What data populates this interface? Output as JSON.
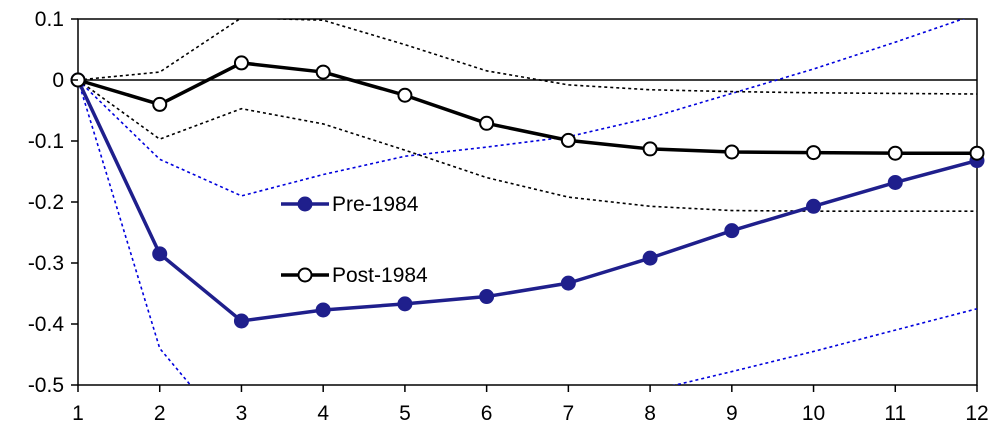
{
  "chart_data": {
    "type": "line",
    "title": "",
    "xlabel": "",
    "ylabel": "",
    "x": [
      1,
      2,
      3,
      4,
      5,
      6,
      7,
      8,
      9,
      10,
      11,
      12
    ],
    "xlim": [
      1,
      12
    ],
    "ylim": [
      -0.5,
      0.1
    ],
    "yticks": [
      0.1,
      0,
      -0.1,
      -0.2,
      -0.3,
      -0.4,
      -0.5
    ],
    "ytick_labels": [
      "0.1",
      "0",
      "-0.1",
      "-0.2",
      "-0.3",
      "-0.4",
      "-0.5"
    ],
    "xtick_labels": [
      "1",
      "2",
      "3",
      "4",
      "5",
      "6",
      "7",
      "8",
      "9",
      "10",
      "11",
      "12"
    ],
    "grid": false,
    "zero_line": true,
    "legend_position": "inside-left",
    "series": [
      {
        "name": "Pre-1984",
        "color": "#1f1f8c",
        "marker": "filled-circle",
        "values": [
          0.0,
          -0.285,
          -0.395,
          -0.377,
          -0.367,
          -0.355,
          -0.333,
          -0.292,
          -0.247,
          -0.207,
          -0.168,
          -0.132
        ]
      },
      {
        "name": "Post-1984",
        "color": "#000000",
        "marker": "open-circle",
        "values": [
          0.0,
          -0.04,
          0.028,
          0.013,
          -0.025,
          -0.071,
          -0.099,
          -0.113,
          -0.118,
          -0.119,
          -0.12,
          -0.12
        ]
      }
    ],
    "bands": [
      {
        "color": "#0000dd",
        "style": "dotted",
        "of": "Pre-1984",
        "upper": [
          0.0,
          -0.13,
          -0.19,
          -0.155,
          -0.125,
          -0.11,
          -0.093,
          -0.062,
          -0.022,
          0.018,
          0.062,
          0.108
        ],
        "lower": [
          0.0,
          -0.44,
          -0.6,
          -0.62,
          -0.62,
          -0.62,
          -0.62,
          -0.51,
          -0.478,
          -0.445,
          -0.41,
          -0.375
        ]
      },
      {
        "color": "#000000",
        "style": "dotted",
        "of": "Post-1984",
        "upper": [
          0.0,
          0.013,
          0.102,
          0.098,
          0.058,
          0.015,
          -0.008,
          -0.016,
          -0.019,
          -0.021,
          -0.022,
          -0.023
        ],
        "lower": [
          0.0,
          -0.097,
          -0.047,
          -0.072,
          -0.115,
          -0.16,
          -0.192,
          -0.207,
          -0.214,
          -0.215,
          -0.215,
          -0.215
        ]
      }
    ]
  }
}
